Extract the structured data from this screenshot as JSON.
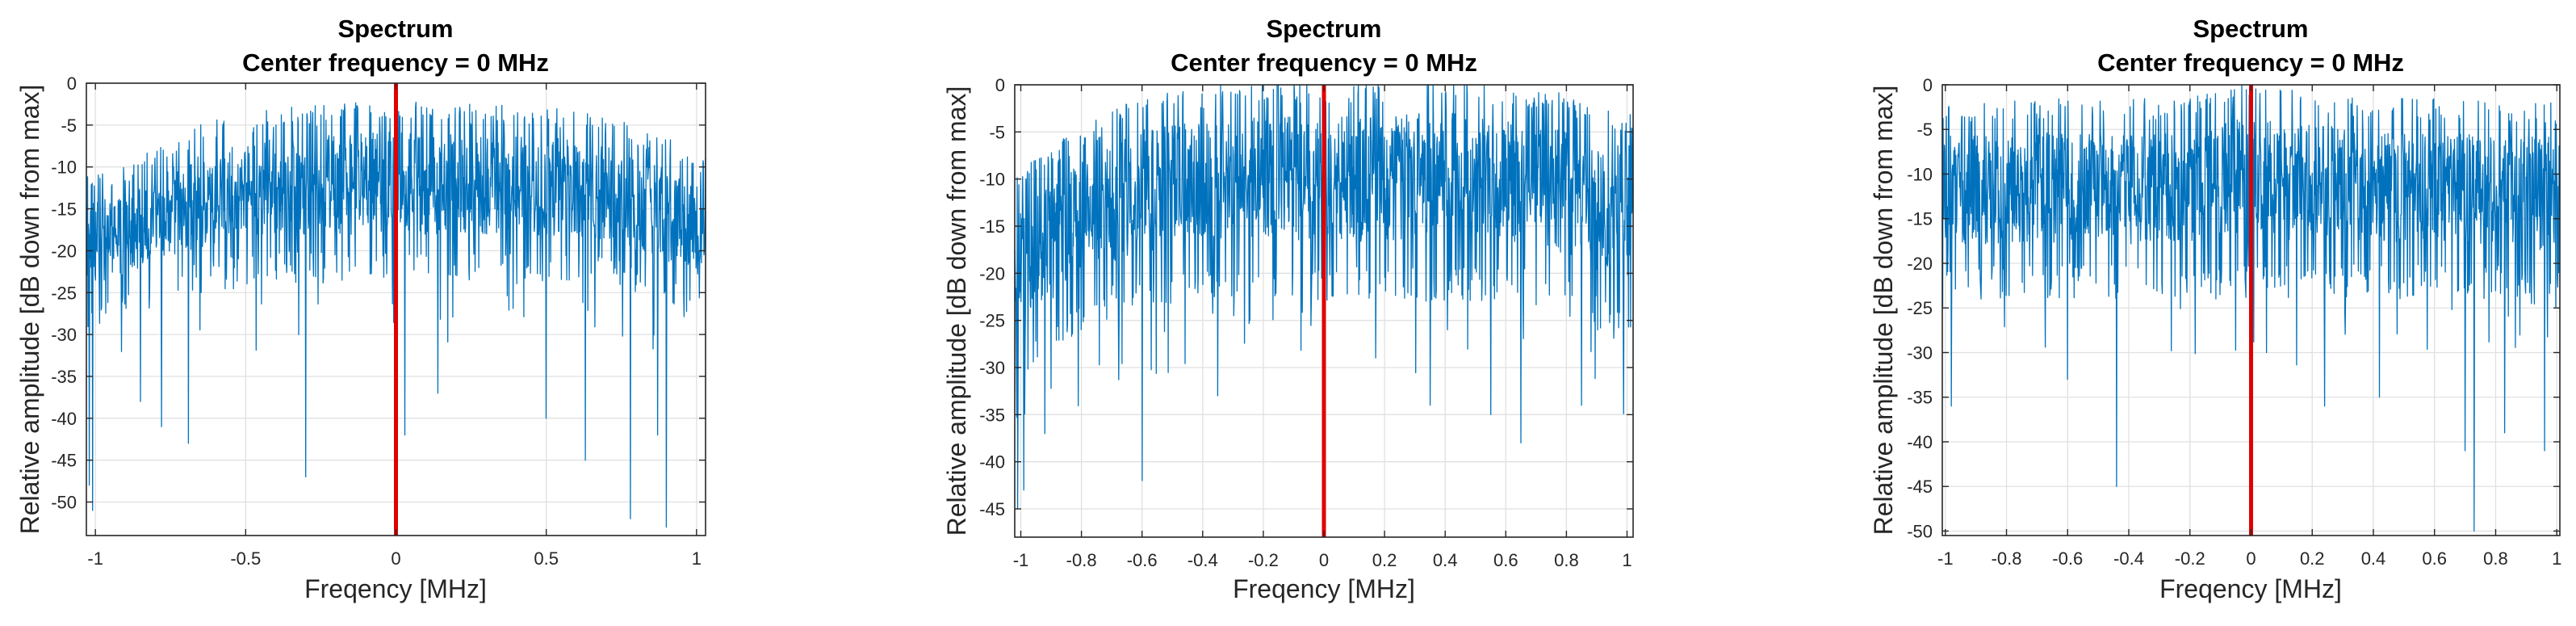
{
  "figure": {
    "style": {
      "series_color": "#0072BD",
      "marker_color": "#E00000",
      "grid_color": "#E0E0E0",
      "axis_color": "#262626"
    },
    "noise_seeds": [
      11,
      23,
      37
    ]
  },
  "chart_data": [
    {
      "type": "line",
      "title": "Spectrum",
      "subtitle": "Center frequency = 0 MHz",
      "xlabel": "Freqency [MHz]",
      "ylabel": "Relative amplitude [dB down from max]",
      "xlim": [
        -1.03,
        1.03
      ],
      "ylim": [
        -54,
        0
      ],
      "xticks": [
        -1,
        -0.5,
        0,
        0.5,
        1
      ],
      "xtick_labels": [
        "-1",
        "-0.5",
        "0",
        "0.5",
        "1"
      ],
      "yticks": [
        0,
        -5,
        -10,
        -15,
        -20,
        -25,
        -30,
        -35,
        -40,
        -45,
        -50
      ],
      "ytick_labels": [
        "0",
        "-5",
        "-10",
        "-15",
        "-20",
        "-25",
        "-30",
        "-35",
        "-40",
        "-45",
        "-50"
      ],
      "grid": true,
      "center_marker_x": 0,
      "series": [
        {
          "name": "spectrum",
          "envelope_x": [
            -1.03,
            -0.9,
            -0.75,
            -0.6,
            -0.4,
            -0.2,
            0,
            0.2,
            0.4,
            0.6,
            0.75,
            0.9,
            1.03
          ],
          "envelope_max": [
            -13,
            -12,
            -9,
            -6.5,
            -5.5,
            -5,
            -4.5,
            -5,
            -5,
            -5.5,
            -7,
            -9,
            -11
          ],
          "envelope_min": [
            -28,
            -26,
            -24,
            -23,
            -22,
            -22,
            -22,
            -22,
            -22,
            -22,
            -23,
            -25,
            -27
          ],
          "deep_nulls": [
            [
              -1.02,
              -48
            ],
            [
              -1.01,
              -51
            ],
            [
              -0.78,
              -41
            ],
            [
              -0.69,
              -43
            ],
            [
              -0.3,
              -47
            ],
            [
              0.03,
              -42
            ],
            [
              0.14,
              -37
            ],
            [
              0.63,
              -45
            ],
            [
              0.78,
              -52
            ],
            [
              0.87,
              -42
            ],
            [
              0.9,
              -53
            ],
            [
              -0.85,
              -38
            ],
            [
              0.5,
              -40
            ]
          ]
        }
      ]
    },
    {
      "type": "line",
      "title": "Spectrum",
      "subtitle": "Center frequency = 0 MHz",
      "xlabel": "Freqency [MHz]",
      "ylabel": "Relative amplitude [dB down from max]",
      "xlim": [
        -1.02,
        1.02
      ],
      "ylim": [
        -48,
        0
      ],
      "xticks": [
        -1,
        -0.8,
        -0.6,
        -0.4,
        -0.2,
        0,
        0.2,
        0.4,
        0.6,
        0.8,
        1
      ],
      "xtick_labels": [
        "-1",
        "-0.8",
        "-0.6",
        "-0.4",
        "-0.2",
        "0",
        "0.2",
        "0.4",
        "0.6",
        "0.8",
        "1"
      ],
      "yticks": [
        0,
        -5,
        -10,
        -15,
        -20,
        -25,
        -30,
        -35,
        -40,
        -45
      ],
      "ytick_labels": [
        "0",
        "-5",
        "-10",
        "-15",
        "-20",
        "-25",
        "-30",
        "-35",
        "-40",
        "-45"
      ],
      "grid": true,
      "center_marker_x": 0,
      "series": [
        {
          "name": "spectrum",
          "envelope_x": [
            -1.02,
            -0.9,
            -0.75,
            -0.6,
            -0.4,
            -0.2,
            0,
            0.2,
            0.4,
            0.6,
            0.75,
            0.9,
            1.02
          ],
          "envelope_max": [
            -12,
            -9,
            -6,
            -3.5,
            -2.5,
            -2,
            -2,
            -2,
            -1,
            -2.5,
            -3,
            -5,
            -5
          ],
          "envelope_min": [
            -29,
            -27,
            -24,
            -22,
            -21,
            -21,
            -21,
            -21,
            -21,
            -21,
            -22,
            -24,
            -26
          ],
          "deep_nulls": [
            [
              -1.01,
              -45
            ],
            [
              -0.99,
              -43
            ],
            [
              -0.92,
              -37
            ],
            [
              -0.6,
              -42
            ],
            [
              0.0,
              -43
            ],
            [
              -0.35,
              -33
            ],
            [
              0.35,
              -34
            ],
            [
              0.55,
              -35
            ],
            [
              0.85,
              -34
            ],
            [
              0.65,
              -38
            ]
          ]
        }
      ]
    },
    {
      "type": "line",
      "title": "Spectrum",
      "subtitle": "Center frequency = 0 MHz",
      "xlabel": "Freqency [MHz]",
      "ylabel": "Relative amplitude [dB down from max]",
      "xlim": [
        -1.01,
        1.01
      ],
      "ylim": [
        -50.5,
        0
      ],
      "xticks": [
        -1,
        -0.8,
        -0.6,
        -0.4,
        -0.2,
        0,
        0.2,
        0.4,
        0.6,
        0.8,
        1
      ],
      "xtick_labels": [
        "-1",
        "-0.8",
        "-0.6",
        "-0.4",
        "-0.2",
        "0",
        "0.2",
        "0.4",
        "0.6",
        "0.8",
        "1"
      ],
      "yticks": [
        0,
        -5,
        -10,
        -15,
        -20,
        -25,
        -30,
        -35,
        -40,
        -45,
        -50
      ],
      "ytick_labels": [
        "0",
        "-5",
        "-10",
        "-15",
        "-20",
        "-25",
        "-30",
        "-35",
        "-40",
        "-45",
        "-50"
      ],
      "grid": true,
      "center_marker_x": 0,
      "series": [
        {
          "name": "spectrum",
          "envelope_x": [
            -1.01,
            -0.8,
            -0.6,
            -0.4,
            -0.2,
            0,
            0.2,
            0.4,
            0.6,
            0.8,
            1.01
          ],
          "envelope_max": [
            -4.5,
            -4,
            -4,
            -4,
            -4,
            -2,
            -3,
            -4,
            -4,
            -4,
            -4.5
          ],
          "envelope_min": [
            -23,
            -22,
            -22,
            -22,
            -22,
            -22,
            -22,
            -22,
            -22,
            -22,
            -23
          ],
          "deep_nulls": [
            [
              -0.98,
              -36
            ],
            [
              -0.44,
              -45
            ],
            [
              0.24,
              -36
            ],
            [
              0.42,
              -35
            ],
            [
              0.7,
              -41
            ],
            [
              0.73,
              -50
            ],
            [
              0.83,
              -39
            ],
            [
              0.96,
              -41
            ],
            [
              -0.6,
              -33
            ],
            [
              0.05,
              -30
            ]
          ]
        }
      ]
    }
  ]
}
